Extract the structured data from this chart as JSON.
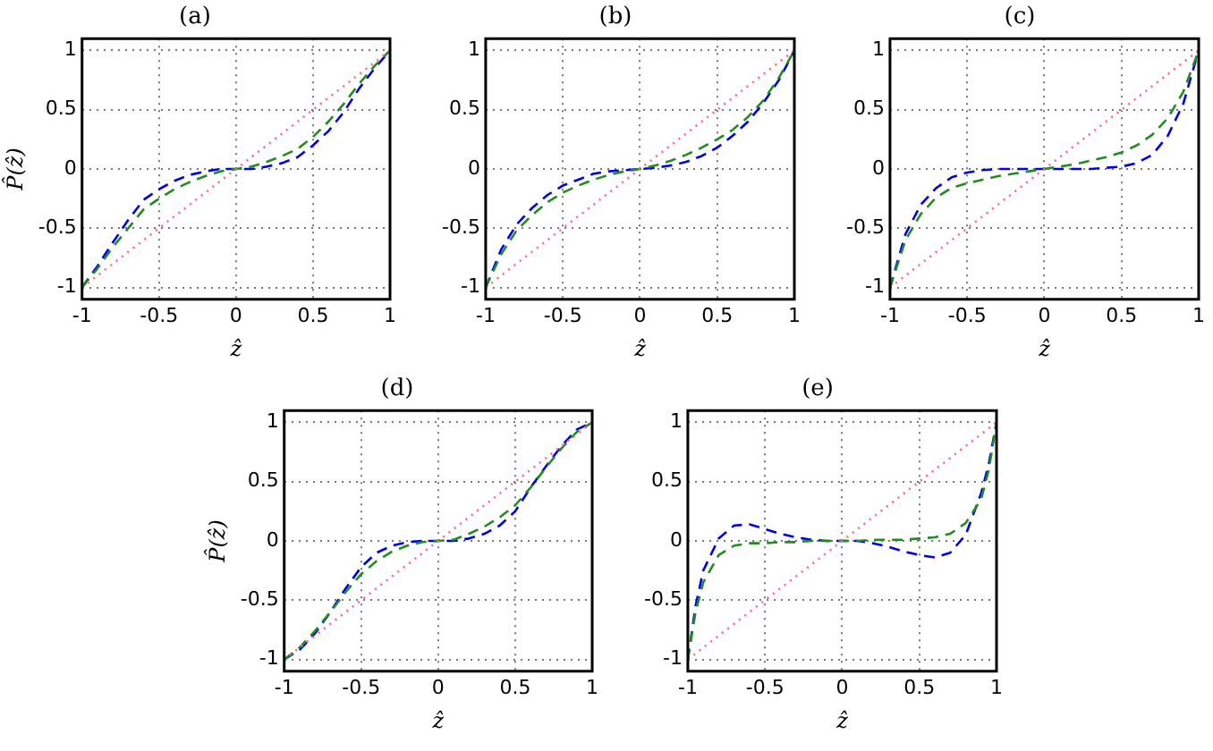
{
  "chart_data": [
    {
      "type": "line",
      "title": "(a)",
      "xlabel": "ẑ",
      "ylabel": "P̂(ẑ)",
      "xlim": [
        -1,
        1
      ],
      "ylim": [
        -1.1,
        1.1
      ],
      "xticks": [
        -1,
        -0.5,
        0,
        0.5,
        1
      ],
      "yticks": [
        -1,
        -0.5,
        0,
        0.5,
        1
      ],
      "grid": true,
      "legend": false,
      "x": [
        -1,
        -0.9,
        -0.8,
        -0.7,
        -0.6,
        -0.5,
        -0.4,
        -0.3,
        -0.2,
        -0.1,
        0,
        0.1,
        0.2,
        0.3,
        0.4,
        0.5,
        0.6,
        0.7,
        0.8,
        0.9,
        1
      ],
      "series": [
        {
          "color": "#ff6680",
          "line_style": "dotted",
          "values": [
            -1,
            -0.9,
            -0.8,
            -0.7,
            -0.6,
            -0.5,
            -0.4,
            -0.3,
            -0.2,
            -0.1,
            0,
            0.1,
            0.2,
            0.3,
            0.4,
            0.5,
            0.6,
            0.7,
            0.8,
            0.9,
            1
          ]
        },
        {
          "color": "#228b22",
          "line_style": "dashed",
          "values": [
            -1,
            -0.84,
            -0.66,
            -0.5,
            -0.34,
            -0.25,
            -0.17,
            -0.11,
            -0.06,
            -0.02,
            0,
            0.02,
            0.06,
            0.11,
            0.17,
            0.27,
            0.4,
            0.55,
            0.72,
            0.87,
            1
          ]
        },
        {
          "color": "#0000ee",
          "line_style": "dashed",
          "values": [
            -1,
            -0.82,
            -0.62,
            -0.43,
            -0.26,
            -0.17,
            -0.1,
            -0.05,
            -0.02,
            0,
            0,
            0,
            0.02,
            0.05,
            0.1,
            0.2,
            0.32,
            0.48,
            0.68,
            0.85,
            1
          ]
        }
      ]
    },
    {
      "type": "line",
      "title": "(b)",
      "xlabel": "ẑ",
      "xlim": [
        -1,
        1
      ],
      "ylim": [
        -1.1,
        1.1
      ],
      "xticks": [
        -1,
        -0.5,
        0,
        0.5,
        1
      ],
      "yticks": [
        -1,
        -0.5,
        0,
        0.5,
        1
      ],
      "grid": true,
      "legend": false,
      "x": [
        -1,
        -0.9,
        -0.8,
        -0.7,
        -0.6,
        -0.5,
        -0.4,
        -0.3,
        -0.2,
        -0.1,
        0,
        0.1,
        0.2,
        0.3,
        0.4,
        0.5,
        0.6,
        0.7,
        0.8,
        0.9,
        1
      ],
      "series": [
        {
          "color": "#ff6680",
          "line_style": "dotted",
          "values": [
            -1,
            -0.9,
            -0.8,
            -0.7,
            -0.6,
            -0.5,
            -0.4,
            -0.3,
            -0.2,
            -0.1,
            0,
            0.1,
            0.2,
            0.3,
            0.4,
            0.5,
            0.6,
            0.7,
            0.8,
            0.9,
            1
          ]
        },
        {
          "color": "#228b22",
          "line_style": "dashed",
          "values": [
            -1,
            -0.72,
            -0.52,
            -0.39,
            -0.28,
            -0.2,
            -0.14,
            -0.09,
            -0.05,
            -0.02,
            0,
            0.03,
            0.07,
            0.12,
            0.18,
            0.25,
            0.33,
            0.44,
            0.58,
            0.77,
            1
          ]
        },
        {
          "color": "#0000ee",
          "line_style": "dashed",
          "values": [
            -1,
            -0.68,
            -0.47,
            -0.33,
            -0.22,
            -0.14,
            -0.09,
            -0.04,
            -0.02,
            -0.01,
            0,
            0.01,
            0.03,
            0.06,
            0.11,
            0.18,
            0.28,
            0.4,
            0.56,
            0.75,
            1
          ]
        }
      ]
    },
    {
      "type": "line",
      "title": "(c)",
      "xlabel": "ẑ",
      "xlim": [
        -1,
        1
      ],
      "ylim": [
        -1.1,
        1.1
      ],
      "xticks": [
        -1,
        -0.5,
        0,
        0.5,
        1
      ],
      "yticks": [
        -1,
        -0.5,
        0,
        0.5,
        1
      ],
      "grid": true,
      "legend": false,
      "x": [
        -1,
        -0.9,
        -0.8,
        -0.7,
        -0.6,
        -0.5,
        -0.4,
        -0.3,
        -0.2,
        -0.1,
        0,
        0.1,
        0.2,
        0.3,
        0.4,
        0.5,
        0.6,
        0.7,
        0.8,
        0.9,
        1
      ],
      "series": [
        {
          "color": "#ff6680",
          "line_style": "dotted",
          "values": [
            -1,
            -0.9,
            -0.8,
            -0.7,
            -0.6,
            -0.5,
            -0.4,
            -0.3,
            -0.2,
            -0.1,
            0,
            0.1,
            0.2,
            0.3,
            0.4,
            0.5,
            0.6,
            0.7,
            0.8,
            0.9,
            1
          ]
        },
        {
          "color": "#228b22",
          "line_style": "dashed",
          "values": [
            -1,
            -0.6,
            -0.38,
            -0.24,
            -0.16,
            -0.12,
            -0.09,
            -0.06,
            -0.04,
            -0.02,
            0,
            0.02,
            0.04,
            0.07,
            0.1,
            0.14,
            0.2,
            0.29,
            0.43,
            0.65,
            1
          ]
        },
        {
          "color": "#0000ee",
          "line_style": "dashed",
          "values": [
            -1,
            -0.55,
            -0.3,
            -0.16,
            -0.07,
            -0.03,
            -0.01,
            0,
            0,
            0,
            0,
            0,
            0,
            0,
            0.01,
            0.02,
            0.05,
            0.12,
            0.28,
            0.55,
            1
          ]
        }
      ]
    },
    {
      "type": "line",
      "title": "(d)",
      "xlabel": "ẑ",
      "ylabel": "P̂(ẑ)",
      "xlim": [
        -1,
        1
      ],
      "ylim": [
        -1.1,
        1.1
      ],
      "xticks": [
        -1,
        -0.5,
        0,
        0.5,
        1
      ],
      "yticks": [
        -1,
        -0.5,
        0,
        0.5,
        1
      ],
      "grid": true,
      "legend": false,
      "x": [
        -1,
        -0.9,
        -0.8,
        -0.7,
        -0.6,
        -0.5,
        -0.4,
        -0.3,
        -0.2,
        -0.1,
        0,
        0.1,
        0.2,
        0.3,
        0.4,
        0.5,
        0.6,
        0.7,
        0.8,
        0.9,
        1
      ],
      "series": [
        {
          "color": "#ff6680",
          "line_style": "dotted",
          "values": [
            -1,
            -0.9,
            -0.8,
            -0.7,
            -0.6,
            -0.5,
            -0.4,
            -0.3,
            -0.2,
            -0.1,
            0,
            0.1,
            0.2,
            0.3,
            0.4,
            0.5,
            0.6,
            0.7,
            0.8,
            0.9,
            1
          ]
        },
        {
          "color": "#228b22",
          "line_style": "dashed",
          "values": [
            -1,
            -0.9,
            -0.76,
            -0.6,
            -0.43,
            -0.28,
            -0.17,
            -0.09,
            -0.04,
            -0.01,
            0,
            0.01,
            0.06,
            0.12,
            0.2,
            0.3,
            0.45,
            0.62,
            0.78,
            0.92,
            1
          ]
        },
        {
          "color": "#0000ee",
          "line_style": "dashed",
          "values": [
            -1,
            -0.92,
            -0.78,
            -0.6,
            -0.4,
            -0.22,
            -0.1,
            -0.04,
            -0.01,
            0,
            0,
            0,
            0.02,
            0.06,
            0.13,
            0.25,
            0.45,
            0.63,
            0.8,
            0.94,
            1
          ]
        }
      ]
    },
    {
      "type": "line",
      "title": "(e)",
      "xlabel": "ẑ",
      "xlim": [
        -1,
        1
      ],
      "ylim": [
        -1.1,
        1.1
      ],
      "xticks": [
        -1,
        -0.5,
        0,
        0.5,
        1
      ],
      "yticks": [
        -1,
        -0.5,
        0,
        0.5,
        1
      ],
      "grid": true,
      "legend": false,
      "x": [
        -1,
        -0.95,
        -0.9,
        -0.8,
        -0.7,
        -0.6,
        -0.5,
        -0.4,
        -0.3,
        -0.2,
        -0.1,
        0,
        0.1,
        0.2,
        0.3,
        0.4,
        0.5,
        0.6,
        0.7,
        0.8,
        0.9,
        0.95,
        1
      ],
      "series": [
        {
          "color": "#ff6680",
          "line_style": "dotted",
          "values": [
            -1,
            -0.95,
            -0.9,
            -0.8,
            -0.7,
            -0.6,
            -0.5,
            -0.4,
            -0.3,
            -0.2,
            -0.1,
            0,
            0.1,
            0.2,
            0.3,
            0.4,
            0.5,
            0.6,
            0.7,
            0.8,
            0.9,
            0.95,
            1
          ]
        },
        {
          "color": "#228b22",
          "line_style": "dashed",
          "values": [
            -1,
            -0.6,
            -0.35,
            -0.12,
            -0.04,
            -0.02,
            -0.02,
            -0.01,
            -0.01,
            0,
            0,
            0,
            0,
            0.01,
            0.01,
            0.01,
            0.02,
            0.03,
            0.06,
            0.15,
            0.35,
            0.6,
            1
          ]
        },
        {
          "color": "#0000ee",
          "line_style": "dashed",
          "values": [
            -1,
            -0.55,
            -0.25,
            0.02,
            0.13,
            0.14,
            0.1,
            0.06,
            0.03,
            0.01,
            0,
            0,
            0,
            -0.02,
            -0.05,
            -0.09,
            -0.12,
            -0.14,
            -0.1,
            0.05,
            0.4,
            0.65,
            1
          ]
        }
      ]
    }
  ]
}
